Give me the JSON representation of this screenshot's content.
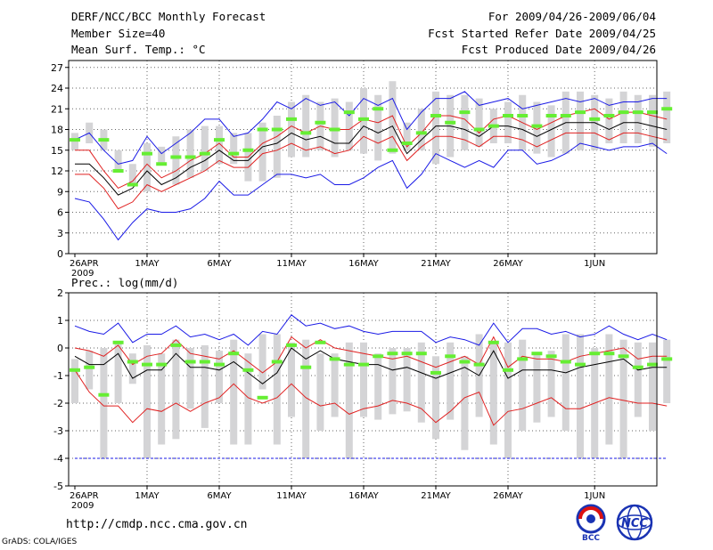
{
  "header": {
    "title": "DERF/NCC/BCC Monthly Forecast",
    "member_size": "Member Size=40",
    "variable": "Mean Surf. Temp.: °C",
    "forecast_range": "For 2009/04/26-2009/06/04",
    "started_refer": "Fcst Started Refer Date 2009/04/25",
    "produced": "Fcst Produced Date 2009/04/26"
  },
  "footer": {
    "url": "http://cmdp.ncc.cma.gov.cn",
    "credit": "GrADS: COLA/IGES",
    "logo_left_text": "BCC",
    "logo_right_text": "NCC"
  },
  "colors": {
    "box": "#d4d4d6",
    "member": "#66ee33",
    "mean": "#000000",
    "inner": "#e02020",
    "outer": "#1a1ae6"
  },
  "chart_data": [
    {
      "type": "line",
      "title": "Mean Surf. Temp.: °C",
      "x_start": "2009-04-26",
      "x_ticks": [
        {
          "day": 0,
          "label": "26APR",
          "sub": "2009"
        },
        {
          "day": 5,
          "label": "1MAY"
        },
        {
          "day": 10,
          "label": "6MAY"
        },
        {
          "day": 15,
          "label": "11MAY"
        },
        {
          "day": 20,
          "label": "16MAY"
        },
        {
          "day": 25,
          "label": "21MAY"
        },
        {
          "day": 30,
          "label": "26MAY"
        },
        {
          "day": 36,
          "label": "1JUN"
        }
      ],
      "ylim": [
        0,
        28
      ],
      "y_ticks": [
        0,
        3,
        6,
        9,
        12,
        15,
        18,
        21,
        24,
        27
      ],
      "grid": true,
      "boxes": {
        "low": [
          15,
          16,
          15,
          12,
          10,
          9,
          13,
          10,
          11,
          12,
          13,
          13,
          10.5,
          10.5,
          11,
          14,
          14,
          15,
          14,
          15,
          14.5,
          13.5,
          14.5,
          15,
          15,
          13,
          14,
          15,
          15.5,
          16,
          16,
          15,
          14.5,
          14,
          14.5,
          15,
          15,
          16,
          16,
          16,
          15.5,
          16
        ],
        "high": [
          17.5,
          19,
          18,
          15,
          13,
          16,
          15.5,
          17,
          18,
          18.5,
          18.5,
          17.5,
          17.5,
          19,
          20,
          22,
          23,
          22,
          22.5,
          22,
          24,
          23,
          25,
          19,
          21,
          23.5,
          23,
          23,
          22.5,
          21,
          22,
          23,
          22,
          21.5,
          23.5,
          23.5,
          23,
          22.5,
          23.5,
          23,
          23,
          23.5
        ]
      },
      "series": [
        {
          "name": "outer-high",
          "color": "outer",
          "values": [
            16.5,
            17.5,
            15,
            13,
            13.5,
            17,
            14.5,
            16,
            17.5,
            19.5,
            19.5,
            17,
            17.5,
            19.5,
            22,
            21,
            22.5,
            21.5,
            22,
            20,
            22.5,
            21.5,
            22.5,
            18,
            20.5,
            22.5,
            22.5,
            23.5,
            21.5,
            22,
            22.5,
            21,
            21.5,
            22,
            22.5,
            22,
            22.5,
            21.5,
            22,
            22,
            22.5,
            22.5
          ]
        },
        {
          "name": "inner-high",
          "color": "inner",
          "values": [
            15,
            15,
            12,
            9.5,
            10.5,
            13,
            11,
            12,
            13.5,
            14.5,
            16,
            14,
            14,
            16,
            17,
            18.5,
            17.5,
            18.5,
            18,
            18,
            19.5,
            19,
            20,
            15.5,
            17.5,
            20,
            20,
            19.5,
            17.5,
            19.5,
            20,
            19,
            18,
            19,
            20,
            20.5,
            21,
            19.5,
            20.5,
            20.5,
            20,
            19.5
          ]
        },
        {
          "name": "mean",
          "color": "mean",
          "values": [
            13,
            13,
            11,
            8.5,
            9.5,
            12,
            10,
            11,
            12.5,
            13.5,
            15,
            13.5,
            13.5,
            15.5,
            16,
            17.5,
            16.5,
            17,
            16,
            16,
            18.5,
            17.5,
            18.5,
            14.5,
            16.5,
            18.5,
            18.5,
            18,
            17,
            18.5,
            18.5,
            18,
            17,
            18,
            19,
            19,
            19,
            18,
            19,
            19,
            18.5,
            18
          ]
        },
        {
          "name": "inner-low",
          "color": "inner",
          "values": [
            11.5,
            11.5,
            9.5,
            6.5,
            7.5,
            10,
            9,
            10,
            11,
            12,
            13.5,
            12.5,
            12.5,
            14.5,
            15,
            16,
            15,
            15.5,
            14.5,
            15,
            17,
            16,
            17,
            13.5,
            15.5,
            17,
            17,
            16.5,
            15.5,
            17,
            17,
            16.5,
            15.5,
            16.5,
            17.5,
            17.5,
            17.5,
            16.5,
            17.5,
            17.5,
            17,
            16.5
          ]
        },
        {
          "name": "outer-low",
          "color": "outer",
          "values": [
            8,
            7.5,
            5,
            2,
            4.5,
            6.5,
            6,
            6,
            6.5,
            8,
            10.5,
            8.5,
            8.5,
            10,
            11.5,
            11.5,
            11,
            11.5,
            10,
            10,
            11,
            12.5,
            13.5,
            9.5,
            11.5,
            14.5,
            13.5,
            12.5,
            13.5,
            12.5,
            15,
            15,
            13,
            13.5,
            14.5,
            16,
            15.5,
            15,
            15.5,
            15.5,
            16,
            14.5
          ]
        }
      ],
      "members": [
        16.5,
        null,
        16.5,
        12,
        10,
        14.5,
        13,
        14,
        14,
        14.5,
        16.5,
        14.5,
        15,
        18,
        18,
        19.5,
        17.5,
        19,
        18,
        20.5,
        19.5,
        21,
        15,
        16,
        17.5,
        20,
        19,
        20.5,
        18,
        18.5,
        20,
        20,
        18.5,
        20,
        20,
        20.5,
        19.5,
        20,
        20.5,
        20.5,
        20.5,
        21
      ]
    },
    {
      "type": "line",
      "title": "Prec.: log(mm/d)",
      "x_start": "2009-04-26",
      "x_ticks": [
        {
          "day": 0,
          "label": "26APR",
          "sub": "2009"
        },
        {
          "day": 5,
          "label": "1MAY"
        },
        {
          "day": 10,
          "label": "6MAY"
        },
        {
          "day": 15,
          "label": "11MAY"
        },
        {
          "day": 20,
          "label": "16MAY"
        },
        {
          "day": 25,
          "label": "21MAY"
        },
        {
          "day": 30,
          "label": "26MAY"
        },
        {
          "day": 36,
          "label": "1JUN"
        }
      ],
      "ylim": [
        -5,
        2
      ],
      "y_ticks": [
        -5,
        -4,
        -3,
        -2,
        -1,
        0,
        1,
        2
      ],
      "grid": true,
      "floor_line": -4,
      "boxes": {
        "low": [
          -2,
          -1.5,
          -4,
          -2,
          -1.3,
          -4,
          -3.5,
          -3.3,
          -2.2,
          -2.9,
          -2,
          -3.5,
          -3.5,
          -1.5,
          -3.5,
          -2.5,
          -4,
          -3,
          -2.5,
          -4,
          -2.5,
          -2.6,
          -2.4,
          -2.3,
          -2.7,
          -3.3,
          -2.6,
          -3.7,
          -2.5,
          -3.5,
          -4,
          -3,
          -2.7,
          -2.5,
          -3,
          -4,
          -4,
          -3.5,
          -4,
          -2.5,
          -3,
          -2
        ],
        "high": [
          -0.4,
          -0.1,
          0,
          0.2,
          -0.2,
          0.1,
          -0.2,
          0.3,
          0,
          0.1,
          -0.1,
          0.3,
          -0.2,
          0.5,
          0.5,
          0.2,
          0.3,
          -0.2,
          -0.2,
          0.2,
          0.2,
          -0.2,
          0,
          0,
          0.2,
          -0.3,
          0.2,
          -0.3,
          0.5,
          0.2,
          0.2,
          0.3,
          -0.2,
          -0.1,
          0.5,
          0.5,
          0,
          0.5,
          0.3,
          0.2,
          0.2,
          0.3
        ]
      },
      "series": [
        {
          "name": "outer-high",
          "color": "outer",
          "values": [
            0.8,
            0.6,
            0.5,
            0.9,
            0.2,
            0.5,
            0.5,
            0.8,
            0.4,
            0.5,
            0.3,
            0.5,
            0.1,
            0.6,
            0.5,
            1.2,
            0.8,
            0.9,
            0.7,
            0.8,
            0.6,
            0.5,
            0.6,
            0.6,
            0.6,
            0.2,
            0.4,
            0.3,
            0.1,
            0.9,
            0.2,
            0.7,
            0.7,
            0.5,
            0.6,
            0.4,
            0.5,
            0.8,
            0.5,
            0.3,
            0.5,
            0.3
          ]
        },
        {
          "name": "inner-high",
          "color": "inner",
          "values": [
            0,
            -0.1,
            -0.3,
            0.1,
            -0.6,
            -0.3,
            -0.2,
            0.3,
            -0.2,
            -0.3,
            -0.4,
            -0.1,
            -0.5,
            -0.9,
            -0.5,
            0.4,
            0,
            0.3,
            0,
            -0.1,
            -0.2,
            -0.3,
            -0.4,
            -0.3,
            -0.5,
            -0.7,
            -0.5,
            -0.3,
            -0.6,
            0.4,
            -0.7,
            -0.3,
            -0.4,
            -0.4,
            -0.5,
            -0.3,
            -0.2,
            -0.1,
            0,
            -0.4,
            -0.3,
            -0.3
          ]
        },
        {
          "name": "mean",
          "color": "mean",
          "values": [
            -0.3,
            -0.6,
            -0.6,
            -0.2,
            -1.1,
            -0.8,
            -0.8,
            -0.2,
            -0.7,
            -0.7,
            -0.8,
            -0.5,
            -0.9,
            -1.3,
            -0.9,
            0,
            -0.4,
            -0.1,
            -0.4,
            -0.5,
            -0.6,
            -0.6,
            -0.8,
            -0.7,
            -0.9,
            -1.1,
            -0.9,
            -0.7,
            -1,
            -0.1,
            -1.1,
            -0.8,
            -0.8,
            -0.8,
            -0.9,
            -0.7,
            -0.6,
            -0.5,
            -0.4,
            -0.8,
            -0.7,
            -0.7
          ]
        },
        {
          "name": "inner-low",
          "color": "inner",
          "values": [
            -0.8,
            -1.6,
            -2.1,
            -2.1,
            -2.7,
            -2.2,
            -2.3,
            -2.0,
            -2.3,
            -2.0,
            -1.8,
            -1.3,
            -1.8,
            -2.0,
            -1.8,
            -1.3,
            -1.8,
            -2.1,
            -2.0,
            -2.4,
            -2.2,
            -2.1,
            -1.9,
            -2.0,
            -2.2,
            -2.7,
            -2.3,
            -1.8,
            -1.6,
            -2.8,
            -2.3,
            -2.2,
            -2.0,
            -1.8,
            -2.2,
            -2.2,
            -2.0,
            -1.8,
            -1.9,
            -2.0,
            -2.0,
            -2.1
          ]
        },
        {
          "name": "outer-low",
          "color": "outer",
          "values": [
            -4,
            -4,
            -4,
            -4,
            -4,
            -4,
            -4,
            -4,
            -4,
            -4,
            -4,
            -4,
            -4,
            -4,
            -4,
            -4,
            -4,
            -4,
            -4,
            -4,
            -4,
            -4,
            -4,
            -4,
            -4,
            -4,
            -4,
            -4,
            -4,
            -4,
            -4,
            -4,
            -4,
            -4,
            -4,
            -4,
            -4,
            -4,
            -4,
            -4,
            -4,
            -4
          ]
        }
      ],
      "members": [
        -0.8,
        -0.7,
        -1.7,
        0.2,
        -0.5,
        -0.6,
        -0.6,
        0.1,
        -0.5,
        -0.5,
        -0.6,
        -0.2,
        -0.8,
        -1.8,
        -0.5,
        0.1,
        -0.7,
        0.2,
        -0.4,
        -0.6,
        -0.6,
        -0.3,
        -0.2,
        -0.2,
        -0.2,
        -0.9,
        -0.3,
        -0.5,
        -0.6,
        0.2,
        -0.8,
        -0.4,
        -0.2,
        -0.3,
        -0.5,
        -0.6,
        -0.2,
        -0.2,
        -0.3,
        -0.7,
        -0.6,
        -0.4
      ]
    }
  ]
}
